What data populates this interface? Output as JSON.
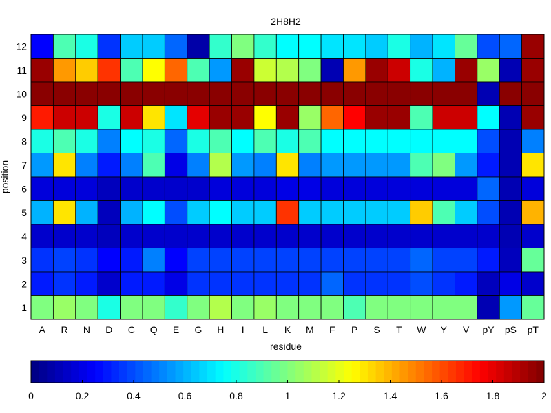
{
  "chart_data": {
    "type": "heatmap",
    "title": "2H8H2",
    "xlabel": "residue",
    "ylabel": "position",
    "colormap": "jet",
    "colorbar": {
      "min": 0,
      "max": 2,
      "ticks": [
        0,
        0.2,
        0.4,
        0.6,
        0.8,
        1,
        1.2,
        1.4,
        1.6,
        1.8,
        2
      ],
      "tick_labels": [
        "0",
        "0.2",
        "0.4",
        "0.6",
        "0.8",
        "1",
        "1.2",
        "1.4",
        "1.6",
        "1.8",
        "2"
      ],
      "placement": "bottom"
    },
    "columns": [
      "A",
      "R",
      "N",
      "D",
      "C",
      "Q",
      "E",
      "G",
      "H",
      "I",
      "L",
      "K",
      "M",
      "F",
      "P",
      "S",
      "T",
      "W",
      "Y",
      "V",
      "pY",
      "pS",
      "pT"
    ],
    "rows": [
      "12",
      "11",
      "10",
      "9",
      "8",
      "7",
      "6",
      "5",
      "4",
      "3",
      "2",
      "1"
    ],
    "values": [
      [
        0.25,
        0.9,
        0.8,
        0.35,
        0.65,
        0.65,
        0.45,
        0.08,
        0.85,
        1.0,
        0.85,
        0.75,
        0.75,
        0.7,
        0.7,
        0.65,
        0.8,
        0.6,
        0.7,
        0.95,
        0.4,
        0.45,
        1.95
      ],
      [
        1.95,
        1.45,
        1.35,
        1.65,
        0.9,
        1.25,
        1.55,
        0.9,
        0.55,
        1.95,
        1.15,
        1.1,
        1.0,
        0.1,
        1.45,
        1.95,
        1.85,
        0.8,
        0.6,
        1.95,
        1.05,
        0.1,
        1.95
      ],
      [
        1.98,
        1.98,
        1.98,
        1.98,
        1.98,
        1.98,
        1.98,
        1.98,
        1.98,
        1.98,
        1.98,
        1.98,
        1.98,
        1.98,
        1.98,
        1.98,
        1.98,
        1.98,
        1.98,
        1.98,
        0.1,
        1.98,
        1.98
      ],
      [
        1.7,
        1.85,
        1.85,
        0.8,
        1.85,
        1.3,
        0.7,
        1.8,
        1.95,
        1.95,
        1.25,
        1.95,
        1.05,
        1.55,
        1.75,
        1.95,
        1.95,
        0.9,
        1.85,
        1.85,
        0.75,
        0.1,
        1.95
      ],
      [
        0.8,
        0.9,
        0.8,
        0.5,
        0.75,
        0.8,
        0.45,
        0.8,
        0.9,
        0.75,
        0.9,
        0.8,
        0.9,
        0.75,
        0.75,
        0.75,
        0.75,
        0.75,
        0.75,
        0.75,
        0.4,
        0.1,
        0.5
      ],
      [
        0.55,
        1.3,
        0.5,
        0.3,
        0.5,
        0.9,
        0.2,
        0.5,
        1.1,
        0.55,
        0.5,
        1.3,
        0.5,
        0.55,
        0.55,
        0.55,
        0.55,
        0.9,
        1.0,
        0.55,
        0.3,
        0.1,
        1.3
      ],
      [
        0.18,
        0.18,
        0.18,
        0.12,
        0.15,
        0.15,
        0.15,
        0.15,
        0.18,
        0.18,
        0.18,
        0.2,
        0.2,
        0.18,
        0.18,
        0.18,
        0.18,
        0.18,
        0.18,
        0.18,
        0.45,
        0.1,
        0.18
      ],
      [
        0.6,
        1.3,
        0.6,
        0.12,
        0.6,
        0.75,
        0.4,
        0.65,
        0.75,
        0.65,
        0.65,
        1.65,
        0.65,
        0.65,
        0.65,
        0.65,
        0.65,
        1.35,
        0.9,
        0.65,
        0.4,
        0.1,
        1.4
      ],
      [
        0.15,
        0.15,
        0.15,
        0.12,
        0.15,
        0.15,
        0.15,
        0.15,
        0.15,
        0.15,
        0.15,
        0.15,
        0.15,
        0.15,
        0.15,
        0.15,
        0.15,
        0.15,
        0.15,
        0.15,
        0.15,
        0.1,
        0.15
      ],
      [
        0.35,
        0.38,
        0.35,
        0.25,
        0.3,
        0.5,
        0.25,
        0.38,
        0.38,
        0.38,
        0.38,
        0.38,
        0.38,
        0.38,
        0.38,
        0.38,
        0.38,
        0.45,
        0.38,
        0.38,
        0.3,
        0.12,
        0.95
      ],
      [
        0.3,
        0.35,
        0.3,
        0.15,
        0.3,
        0.3,
        0.2,
        0.35,
        0.35,
        0.35,
        0.35,
        0.35,
        0.35,
        0.45,
        0.35,
        0.35,
        0.35,
        0.4,
        0.35,
        0.3,
        0.12,
        0.2,
        0.15
      ],
      [
        1.0,
        1.05,
        1.0,
        0.8,
        1.0,
        1.0,
        0.85,
        1.0,
        1.1,
        1.0,
        1.05,
        1.0,
        1.0,
        1.0,
        0.9,
        1.0,
        1.0,
        1.0,
        1.0,
        1.0,
        0.1,
        0.55,
        0.95
      ]
    ]
  }
}
